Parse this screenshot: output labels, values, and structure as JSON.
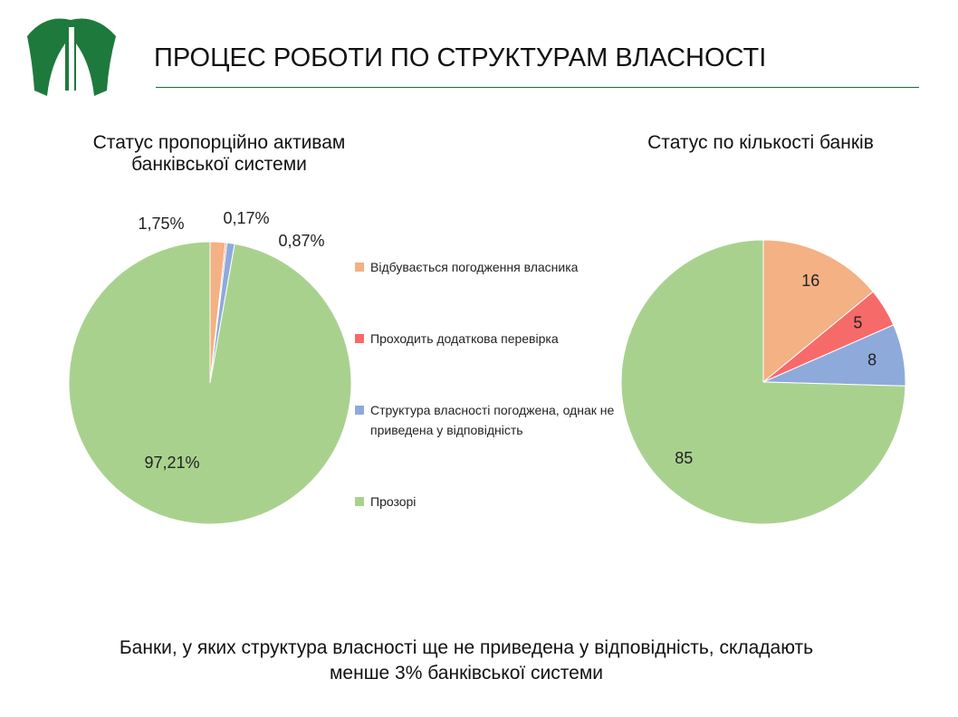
{
  "header": {
    "title": "ПРОЦЕС РОБОТИ ПО СТРУКТУРАМ ВЛАСНОСТІ"
  },
  "chart_data": [
    {
      "type": "pie",
      "title": "Статус пропорційно активам банківської системи",
      "categories": [
        "Відбувається погодження власника",
        "Проходить додаткова перевірка",
        "Структура власності погоджена, однак не приведена у відповідність",
        "Прозорі"
      ],
      "values": [
        1.75,
        0.17,
        0.87,
        97.21
      ],
      "value_labels": [
        "1,75%",
        "0,17%",
        "0,87%",
        "97,21%"
      ],
      "colors": [
        "#f4b183",
        "#f76a6a",
        "#8eaadb",
        "#a9d18e"
      ]
    },
    {
      "type": "pie",
      "title": "Статус по кількості банків",
      "values": [
        16,
        5,
        8,
        85
      ],
      "colors": [
        "#f4b183",
        "#f76a6a",
        "#8eaadb",
        "#a9d18e"
      ]
    }
  ],
  "footer": {
    "text": "Банки, у яких структура власності ще не приведена у відповідність, складають менше 3% банківської системи"
  }
}
